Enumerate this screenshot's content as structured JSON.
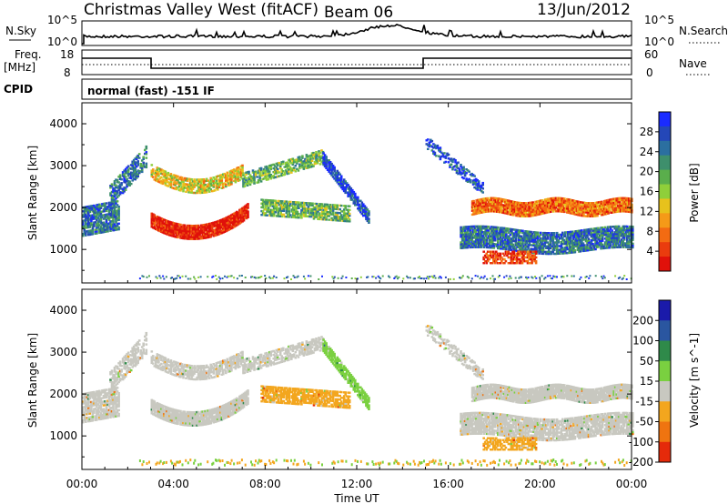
{
  "header": {
    "station": "Christmas Valley West (fitACF)",
    "beam": "Beam 06",
    "date": "13/Jun/2012"
  },
  "panels": {
    "nsky": {
      "left_label": "N.Sky",
      "right_label": "N.Search",
      "left_ticks": [
        "10^5",
        "10^0"
      ],
      "right_ticks": [
        "10^5",
        "10^0"
      ]
    },
    "freq": {
      "left_label_1": "Freq.",
      "left_label_2": "[MHz]",
      "right_label": "Nave",
      "left_ticks": [
        "18",
        "8"
      ],
      "right_ticks": [
        "60",
        "0"
      ]
    },
    "cpid": {
      "label": "CPID",
      "text": "normal (fast) -151 IF"
    }
  },
  "chart_data": [
    {
      "type": "heatmap",
      "title": "",
      "ylabel": "Slant Range [km]",
      "xlabel": "",
      "ylim": [
        200,
        4500
      ],
      "yticks": [
        1000,
        2000,
        3000,
        4000
      ],
      "colorbar": {
        "label": "Power [dB]",
        "ticks": [
          4,
          8,
          12,
          16,
          20,
          24,
          28
        ],
        "range": [
          0,
          32
        ],
        "colors": [
          "#1a2bff",
          "#2447b8",
          "#2b6fa0",
          "#3e8f6c",
          "#5aae4c",
          "#8fcf3a",
          "#e7c21c",
          "#f59a18",
          "#f36b12",
          "#ea3c0e",
          "#e0110a"
        ]
      }
    },
    {
      "type": "heatmap",
      "title": "",
      "ylabel": "Slant Range [km]",
      "xlabel": "Time UT",
      "ylim": [
        200,
        4500
      ],
      "yticks": [
        1000,
        2000,
        3000,
        4000
      ],
      "xticks": [
        "00:00",
        "04:00",
        "08:00",
        "12:00",
        "16:00",
        "20:00",
        "00:00"
      ],
      "colorbar": {
        "label": "Velocity [m s^-1]",
        "ticks": [
          200,
          100,
          50,
          15,
          -15,
          -50,
          -100,
          -200
        ],
        "colors": [
          "#1a1aaa",
          "#2a56a0",
          "#2f8a4a",
          "#7ad040",
          "#c8c8c0",
          "#f3a61e",
          "#ef7410",
          "#e52a0a"
        ]
      }
    }
  ]
}
